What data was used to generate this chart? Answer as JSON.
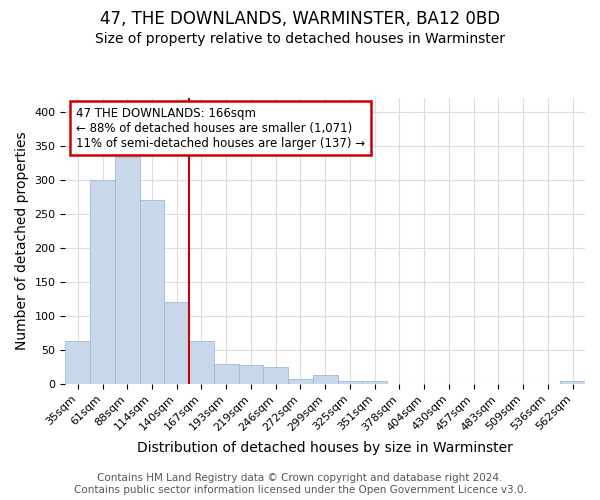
{
  "title": "47, THE DOWNLANDS, WARMINSTER, BA12 0BD",
  "subtitle": "Size of property relative to detached houses in Warminster",
  "xlabel": "Distribution of detached houses by size in Warminster",
  "ylabel": "Number of detached properties",
  "categories": [
    "35sqm",
    "61sqm",
    "88sqm",
    "114sqm",
    "140sqm",
    "167sqm",
    "193sqm",
    "219sqm",
    "246sqm",
    "272sqm",
    "299sqm",
    "325sqm",
    "351sqm",
    "378sqm",
    "404sqm",
    "430sqm",
    "457sqm",
    "483sqm",
    "509sqm",
    "536sqm",
    "562sqm"
  ],
  "values": [
    63,
    300,
    333,
    270,
    120,
    63,
    29,
    28,
    25,
    8,
    13,
    5,
    4,
    0,
    0,
    0,
    0,
    0,
    0,
    0,
    4
  ],
  "bar_color": "#c8d8ea",
  "bar_edge_color": "#a0bcd8",
  "highlight_index": 5,
  "highlight_line_color": "#cc0000",
  "annotation_line1": "47 THE DOWNLANDS: 166sqm",
  "annotation_line2": "← 88% of detached houses are smaller (1,071)",
  "annotation_line3": "11% of semi-detached houses are larger (137) →",
  "annotation_box_color": "#ffffff",
  "annotation_box_edge_color": "#cc0000",
  "ylim": [
    0,
    420
  ],
  "yticks": [
    0,
    50,
    100,
    150,
    200,
    250,
    300,
    350,
    400
  ],
  "footer_line1": "Contains HM Land Registry data © Crown copyright and database right 2024.",
  "footer_line2": "Contains public sector information licensed under the Open Government Licence v3.0.",
  "bg_color": "#ffffff",
  "plot_bg_color": "#ffffff",
  "grid_color": "#dddddd",
  "title_fontsize": 12,
  "subtitle_fontsize": 10,
  "axis_label_fontsize": 10,
  "tick_fontsize": 8,
  "annotation_fontsize": 8.5,
  "footer_fontsize": 7.5
}
